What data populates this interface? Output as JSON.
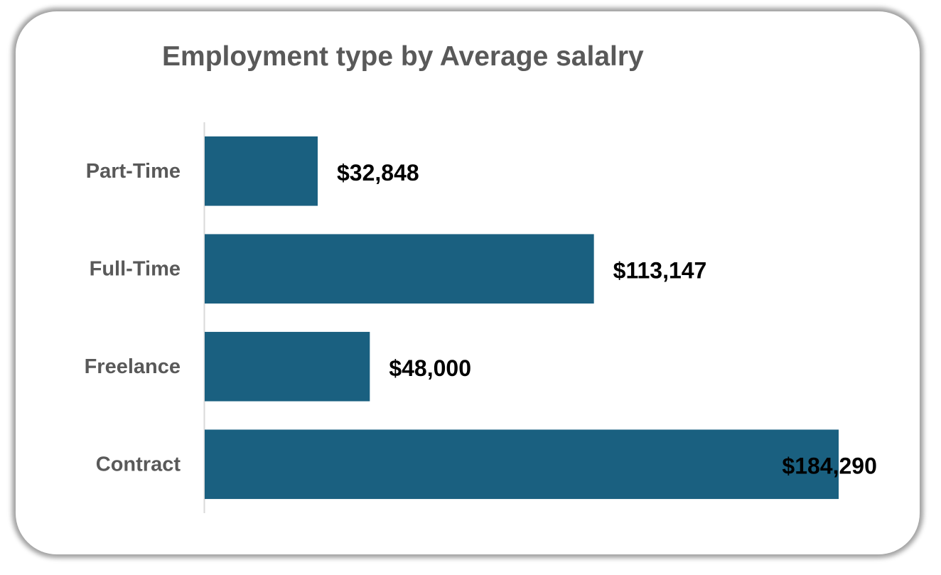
{
  "chart_data": {
    "type": "bar",
    "orientation": "horizontal",
    "title": "Employment type by Average salalry",
    "xlabel": "",
    "ylabel": "",
    "categories": [
      "Part-Time",
      "Full-Time",
      "Freelance",
      "Contract"
    ],
    "values": [
      32848,
      113147,
      48000,
      184290
    ],
    "data_labels": [
      "$32,848",
      "$113,147",
      "$48,000",
      "$184,290"
    ],
    "xlim": [
      0,
      184290
    ],
    "grid": false,
    "legend": "none",
    "colors": {
      "bar": "#1a6080",
      "axis": "#d9d9d9",
      "title": "#595959",
      "category_label": "#595959",
      "value_label": "#000000"
    }
  }
}
